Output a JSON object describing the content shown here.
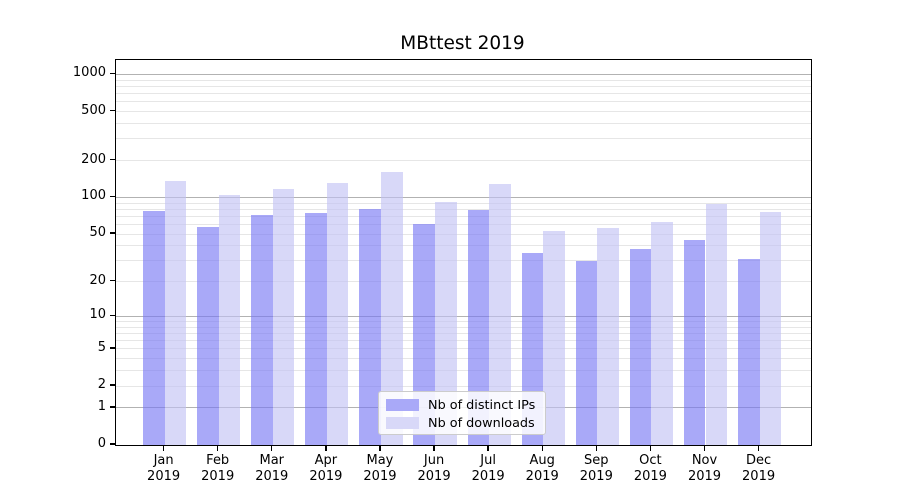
{
  "title": "MBttest 2019",
  "chart_data": {
    "type": "bar",
    "title": "MBttest 2019",
    "subtitle": "",
    "xlabel": "",
    "ylabel": "",
    "y_scale": "log1p",
    "grid": "horizontal",
    "legend_position": "lower center",
    "categories": [
      "Jan 2019",
      "Feb 2019",
      "Mar 2019",
      "Apr 2019",
      "May 2019",
      "Jun 2019",
      "Jul 2019",
      "Aug 2019",
      "Sep 2019",
      "Oct 2019",
      "Nov 2019",
      "Dec 2019"
    ],
    "series": [
      {
        "name": "Nb of distinct IPs",
        "color": "#a9a9f8",
        "values": [
          78,
          57,
          72,
          75,
          80,
          61,
          79,
          35,
          30,
          38,
          45,
          31
        ]
      },
      {
        "name": "Nb of downloads",
        "color": "#d8d8f8",
        "values": [
          137,
          105,
          118,
          131,
          160,
          92,
          129,
          53,
          56,
          63,
          88,
          76
        ]
      }
    ],
    "y_axis": {
      "tick_labels": [
        "1000",
        "500",
        "200",
        "100",
        "50",
        "20",
        "10",
        "5",
        "2",
        "1",
        "0"
      ],
      "tick_values": [
        1000,
        500,
        200,
        100,
        50,
        20,
        10,
        5,
        2,
        1,
        0
      ],
      "range": [
        0,
        1330
      ]
    },
    "gridlines": {
      "major_values": [
        1,
        10,
        100,
        1000
      ],
      "minor_values": [
        2,
        3,
        4,
        5,
        6,
        7,
        8,
        9,
        20,
        30,
        40,
        50,
        60,
        70,
        80,
        90,
        200,
        300,
        400,
        500,
        600,
        700,
        800,
        900
      ],
      "major_color": "#b2b2b2",
      "minor_color": "#e6e6e6"
    }
  },
  "legend": {
    "items": [
      {
        "label": "Nb of distinct IPs",
        "color": "#a9a9f8"
      },
      {
        "label": "Nb of downloads",
        "color": "#d8d8f8"
      }
    ]
  }
}
